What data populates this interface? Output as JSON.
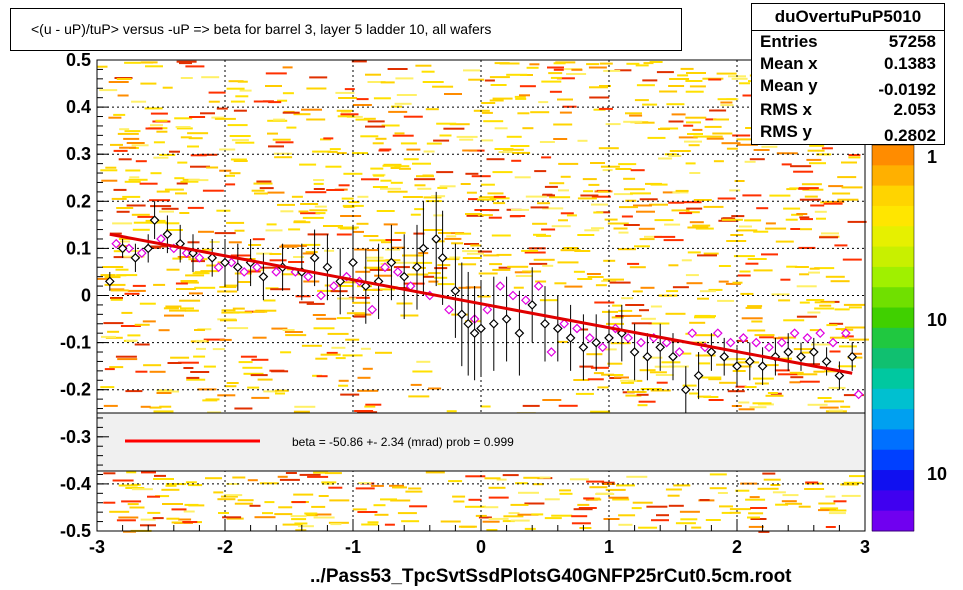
{
  "title": "<(u - uP)/tuP> versus  -uP => beta for barrel 3, layer 5 ladder 10, all wafers",
  "footer": "../Pass53_TpcSvtSsdPlotsG40GNFP25rCut0.5cm.root",
  "stats": {
    "name": "duOvertuPuP5010",
    "rows": [
      {
        "label": "Entries",
        "value": "57258"
      },
      {
        "label": "Mean x",
        "value": "0.1383"
      },
      {
        "label": "Mean y",
        "value": "-0.0192"
      },
      {
        "label": "RMS x",
        "value": "2.053"
      },
      {
        "label": "RMS y",
        "value": "0.2802"
      }
    ]
  },
  "legend": {
    "text": "beta =  -50.86 +-  2.34 (mrad) prob = 0.999",
    "line_color": "#ff0000"
  },
  "colors": {
    "fit": "#e00000",
    "black_points": "#000000",
    "magenta_points": "#e000e0",
    "grid": "#000000"
  },
  "chart_data": {
    "type": "scatter",
    "xlim": [
      -3,
      3
    ],
    "ylim": [
      -0.5,
      0.5
    ],
    "x_ticks": [
      "-3",
      "-2",
      "-1",
      "0",
      "1",
      "2",
      "3"
    ],
    "y_ticks": [
      "-0.5",
      "-0.4",
      "-0.3",
      "-0.2",
      "-0.1",
      "0",
      "0.1",
      "0.2",
      "0.3",
      "0.4",
      "0.5"
    ],
    "z_ticks": [
      "1",
      "10",
      "10"
    ],
    "grid": true,
    "fit_line": {
      "x": [
        -2.9,
        2.9
      ],
      "y": [
        0.13,
        -0.165
      ]
    },
    "series": [
      {
        "marker": "open-diamond-black",
        "points": [
          [
            -2.9,
            0.03,
            0.02
          ],
          [
            -2.8,
            0.1,
            0.02
          ],
          [
            -2.7,
            0.08,
            0.03
          ],
          [
            -2.6,
            0.1,
            0.03
          ],
          [
            -2.55,
            0.16,
            0.04
          ],
          [
            -2.45,
            0.13,
            0.04
          ],
          [
            -2.35,
            0.11,
            0.04
          ],
          [
            -2.25,
            0.09,
            0.04
          ],
          [
            -2.1,
            0.08,
            0.04
          ],
          [
            -2.0,
            0.07,
            0.05
          ],
          [
            -1.9,
            0.06,
            0.05
          ],
          [
            -1.8,
            0.07,
            0.05
          ],
          [
            -1.7,
            0.04,
            0.05
          ],
          [
            -1.55,
            0.06,
            0.05
          ],
          [
            -1.4,
            0.05,
            0.06
          ],
          [
            -1.3,
            0.08,
            0.06
          ],
          [
            -1.2,
            0.06,
            0.07
          ],
          [
            -1.1,
            0.03,
            0.07
          ],
          [
            -1.0,
            0.07,
            0.08
          ],
          [
            -0.9,
            0.02,
            0.08
          ],
          [
            -0.8,
            0.03,
            0.08
          ],
          [
            -0.7,
            0.07,
            0.08
          ],
          [
            -0.6,
            0.04,
            0.09
          ],
          [
            -0.5,
            0.06,
            0.09
          ],
          [
            -0.45,
            0.1,
            0.1
          ],
          [
            -0.35,
            0.12,
            0.1
          ],
          [
            -0.3,
            0.08,
            0.1
          ],
          [
            -0.2,
            0.01,
            0.1
          ],
          [
            -0.15,
            -0.04,
            0.11
          ],
          [
            -0.1,
            -0.06,
            0.11
          ],
          [
            -0.05,
            -0.08,
            0.1
          ],
          [
            0.0,
            -0.07,
            0.1
          ],
          [
            0.1,
            -0.06,
            0.1
          ],
          [
            0.2,
            -0.05,
            0.09
          ],
          [
            0.3,
            -0.08,
            0.09
          ],
          [
            0.4,
            -0.02,
            0.08
          ],
          [
            0.5,
            -0.06,
            0.08
          ],
          [
            0.6,
            -0.07,
            0.07
          ],
          [
            0.7,
            -0.09,
            0.07
          ],
          [
            0.8,
            -0.11,
            0.07
          ],
          [
            0.9,
            -0.1,
            0.06
          ],
          [
            1.0,
            -0.09,
            0.06
          ],
          [
            1.1,
            -0.08,
            0.06
          ],
          [
            1.2,
            -0.12,
            0.06
          ],
          [
            1.3,
            -0.13,
            0.05
          ],
          [
            1.4,
            -0.11,
            0.05
          ],
          [
            1.5,
            -0.13,
            0.05
          ],
          [
            1.6,
            -0.2,
            0.05
          ],
          [
            1.7,
            -0.17,
            0.05
          ],
          [
            1.8,
            -0.12,
            0.04
          ],
          [
            1.9,
            -0.13,
            0.04
          ],
          [
            2.0,
            -0.15,
            0.04
          ],
          [
            2.1,
            -0.14,
            0.04
          ],
          [
            2.2,
            -0.15,
            0.04
          ],
          [
            2.3,
            -0.13,
            0.04
          ],
          [
            2.4,
            -0.12,
            0.04
          ],
          [
            2.5,
            -0.13,
            0.03
          ],
          [
            2.6,
            -0.12,
            0.03
          ],
          [
            2.7,
            -0.14,
            0.03
          ],
          [
            2.8,
            -0.17,
            0.03
          ],
          [
            2.9,
            -0.13,
            0.03
          ]
        ]
      },
      {
        "marker": "open-diamond-magenta",
        "points": [
          [
            -2.85,
            0.11
          ],
          [
            -2.75,
            0.1
          ],
          [
            -2.65,
            0.09
          ],
          [
            -2.5,
            0.12
          ],
          [
            -2.4,
            0.1
          ],
          [
            -2.3,
            0.09
          ],
          [
            -2.2,
            0.08
          ],
          [
            -2.05,
            0.06
          ],
          [
            -1.95,
            0.07
          ],
          [
            -1.85,
            0.05
          ],
          [
            -1.75,
            0.06
          ],
          [
            -1.6,
            0.05
          ],
          [
            -1.45,
            0.05
          ],
          [
            -1.35,
            0.04
          ],
          [
            -1.25,
            0.0
          ],
          [
            -1.15,
            0.02
          ],
          [
            -1.05,
            0.04
          ],
          [
            -0.95,
            0.03
          ],
          [
            -0.85,
            -0.03
          ],
          [
            -0.75,
            0.06
          ],
          [
            -0.65,
            0.05
          ],
          [
            -0.55,
            0.02
          ],
          [
            -0.4,
            0.0
          ],
          [
            -0.25,
            -0.03
          ],
          [
            -0.05,
            -0.05
          ],
          [
            0.05,
            -0.03
          ],
          [
            0.15,
            0.02
          ],
          [
            0.25,
            0.0
          ],
          [
            0.35,
            -0.01
          ],
          [
            0.45,
            0.02
          ],
          [
            0.55,
            -0.12
          ],
          [
            0.65,
            -0.06
          ],
          [
            0.75,
            -0.07
          ],
          [
            0.85,
            -0.09
          ],
          [
            0.95,
            -0.11
          ],
          [
            1.05,
            -0.07
          ],
          [
            1.15,
            -0.09
          ],
          [
            1.25,
            -0.1
          ],
          [
            1.35,
            -0.09
          ],
          [
            1.45,
            -0.1
          ],
          [
            1.55,
            -0.12
          ],
          [
            1.65,
            -0.08
          ],
          [
            1.75,
            -0.11
          ],
          [
            1.85,
            -0.08
          ],
          [
            1.95,
            -0.1
          ],
          [
            2.05,
            -0.09
          ],
          [
            2.15,
            -0.1
          ],
          [
            2.25,
            -0.11
          ],
          [
            2.35,
            -0.1
          ],
          [
            2.45,
            -0.08
          ],
          [
            2.55,
            -0.09
          ],
          [
            2.65,
            -0.08
          ],
          [
            2.75,
            -0.1
          ],
          [
            2.85,
            -0.08
          ],
          [
            2.95,
            -0.21
          ]
        ]
      }
    ]
  }
}
